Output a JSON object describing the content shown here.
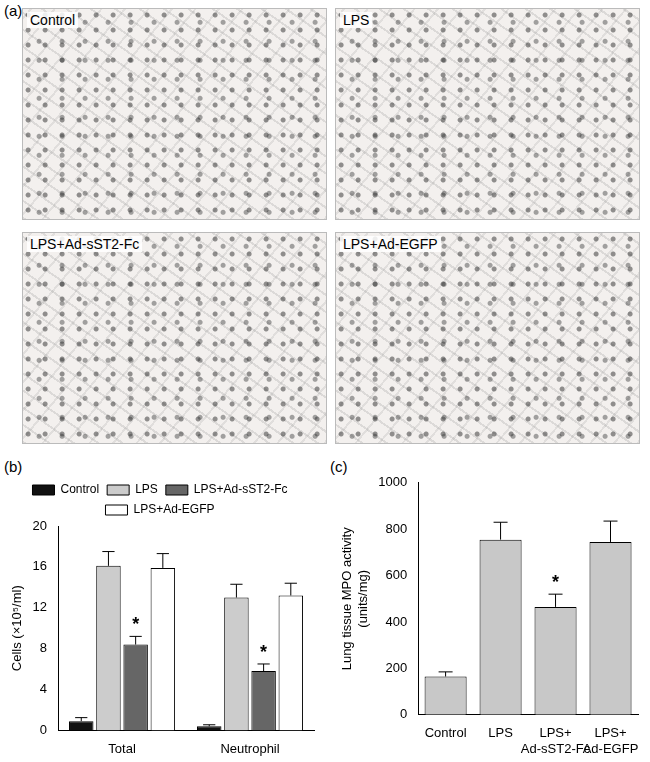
{
  "panel_a": {
    "label": "(a)",
    "images": [
      "Control",
      "LPS",
      "LPS+Ad-sST2-Fc",
      "LPS+Ad-EGFP"
    ]
  },
  "chart_data": [
    {
      "type": "bar",
      "panel_label": "(b)",
      "y_label": "Cells (×10⁵/ml)",
      "categories": [
        "Total",
        "Neutrophil"
      ],
      "series": [
        {
          "name": "Control",
          "color": "#111111",
          "values": [
            0.9,
            0.4
          ],
          "errors": [
            0.35,
            0.15
          ]
        },
        {
          "name": "LPS",
          "color": "#cccccc",
          "values": [
            16.1,
            13.0
          ],
          "errors": [
            1.4,
            1.3
          ]
        },
        {
          "name": "LPS+Ad-sST2-Fc",
          "color": "#666666",
          "values": [
            8.4,
            5.8
          ],
          "errors": [
            0.8,
            0.7
          ]
        },
        {
          "name": "LPS+Ad-EGFP",
          "color": "#ffffff",
          "values": [
            15.9,
            13.2
          ],
          "errors": [
            1.4,
            1.2
          ]
        }
      ],
      "ylim": [
        0,
        20
      ],
      "yticks": [
        0,
        4,
        8,
        12,
        16,
        20
      ],
      "grid": false,
      "legend": "top",
      "annotations": [
        {
          "text": "*",
          "series": "LPS+Ad-sST2-Fc",
          "category": "Total"
        },
        {
          "text": "*",
          "series": "LPS+Ad-sST2-Fc",
          "category": "Neutrophil"
        }
      ]
    },
    {
      "type": "bar",
      "panel_label": "(c)",
      "y_label": "Lung tissue MPO activity\n(units/mg)",
      "categories": [
        "Control",
        "LPS",
        "LPS+\nAd-sST2-Fc",
        "LPS+\nAd-EGFP"
      ],
      "values": [
        165,
        755,
        465,
        745
      ],
      "errors": [
        20,
        75,
        55,
        90
      ],
      "color": "#c8c8c8",
      "ylim": [
        0,
        1000
      ],
      "yticks": [
        0,
        200,
        400,
        600,
        800,
        1000
      ],
      "grid": false,
      "annotations": [
        {
          "text": "*",
          "category": "LPS+\nAd-sST2-Fc"
        }
      ]
    }
  ]
}
